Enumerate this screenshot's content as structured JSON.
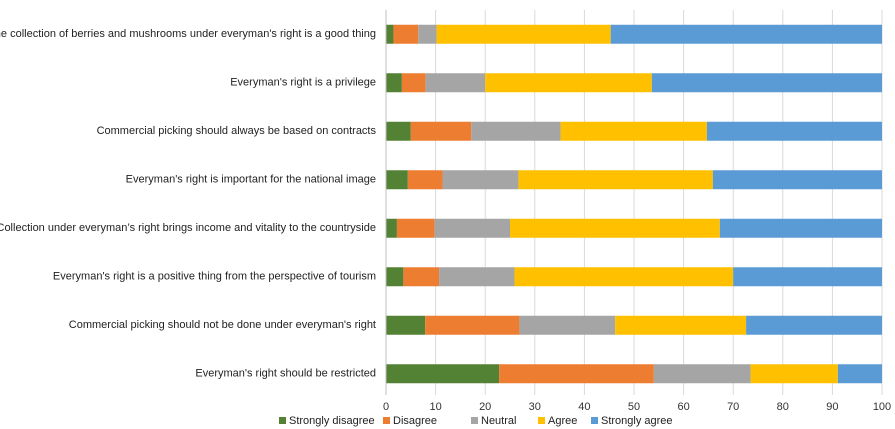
{
  "chart_data": {
    "type": "bar",
    "orientation": "horizontal",
    "stacked": true,
    "categories": [
      "The collection of berries and mushrooms under everyman's right is a good thing",
      "Everyman's right is a privilege",
      "Commercial picking should always be based on contracts",
      "Everyman's right is important for the national image",
      "Collection under everyman’s right brings income and vitality to the countryside",
      "Everyman's right is a positive thing from the perspective of tourism",
      "Commercial picking should not be done under everyman's right",
      "Everyman's right should be restricted"
    ],
    "series": [
      {
        "name": "Strongly disagree",
        "color": "#548235",
        "values": [
          1.5,
          3.2,
          5.0,
          4.4,
          2.2,
          3.5,
          7.9,
          22.8
        ]
      },
      {
        "name": "Disagree",
        "color": "#ED7D31",
        "values": [
          5.0,
          4.8,
          12.2,
          7.0,
          7.6,
          7.2,
          19.0,
          31.2
        ]
      },
      {
        "name": "Neutral",
        "color": "#A5A5A5",
        "values": [
          3.7,
          12.0,
          18.0,
          15.3,
          15.2,
          15.2,
          19.3,
          19.5
        ]
      },
      {
        "name": "Agree",
        "color": "#FFC000",
        "values": [
          35.1,
          33.6,
          29.5,
          39.2,
          42.3,
          44.1,
          26.4,
          17.6
        ]
      },
      {
        "name": "Strongly agree",
        "color": "#5B9BD5",
        "values": [
          54.7,
          46.4,
          35.3,
          34.1,
          32.7,
          30.0,
          27.4,
          8.9
        ]
      }
    ],
    "xlim": [
      0,
      100
    ],
    "xticks": [
      "0",
      "10",
      "20",
      "30",
      "40",
      "50",
      "60",
      "70",
      "80",
      "90",
      "100"
    ],
    "xgrid": true,
    "legend_position": "bottom"
  }
}
